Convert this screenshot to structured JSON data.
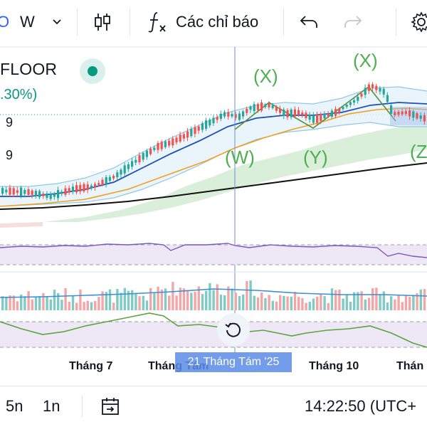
{
  "toolbar": {
    "symbol_fragment": "O",
    "interval": "W",
    "indicators_label": "Các chỉ báo"
  },
  "legend": {
    "symbol": "FLOOR",
    "change": ".30%)",
    "price_ticks": [
      "9",
      "9"
    ]
  },
  "waves": [
    "(X)",
    "(X)",
    "(W)",
    "(Y)",
    "(Z"
  ],
  "time_axis": {
    "labels": [
      "Tháng 7",
      "Tháng Tám",
      "Tháng 10",
      "Thán"
    ],
    "crosshair": "21 Tháng Tám '25"
  },
  "bottom_bar": {
    "range_5": "5n",
    "range_1": "1n",
    "clock": "14:22:50 (UTC+"
  },
  "colors": {
    "up": "#26a69a",
    "down": "#ef5350",
    "ma_fast": "#1e4fb8",
    "ma_mid": "#f0a020",
    "ma_slow": "#111111",
    "wave": "#4caf50",
    "rsi": "#7e57c2"
  }
}
